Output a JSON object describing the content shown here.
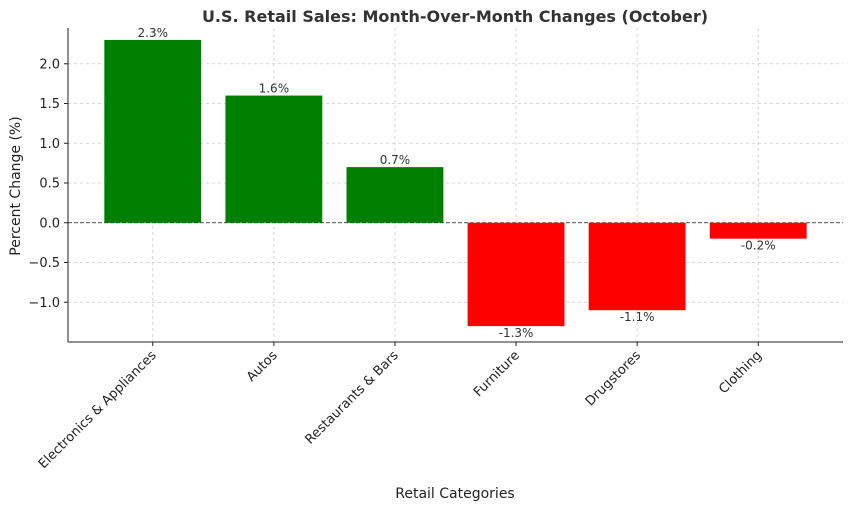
{
  "chart_data": {
    "type": "bar",
    "title": "U.S. Retail Sales: Month-Over-Month Changes (October)",
    "xlabel": "Retail Categories",
    "ylabel": "Percent Change (%)",
    "categories": [
      "Electronics & Appliances",
      "Autos",
      "Restaurants & Bars",
      "Furniture",
      "Drugstores",
      "Clothing"
    ],
    "values": [
      2.3,
      1.6,
      0.7,
      -1.3,
      -1.1,
      -0.2
    ],
    "data_labels": [
      "2.3%",
      "1.6%",
      "0.7%",
      "-1.3%",
      "-1.1%",
      "-0.2%"
    ],
    "ylim": [
      -1.5,
      2.45
    ],
    "yticks": [
      -1.0,
      -0.5,
      0.0,
      0.5,
      1.0,
      1.5,
      2.0
    ],
    "ytick_labels": [
      "−1.0",
      "−0.5",
      "0.0",
      "0.5",
      "1.0",
      "1.5",
      "2.0"
    ],
    "grid": true,
    "colors": {
      "positive": "#008000",
      "negative": "#ff0000"
    }
  }
}
